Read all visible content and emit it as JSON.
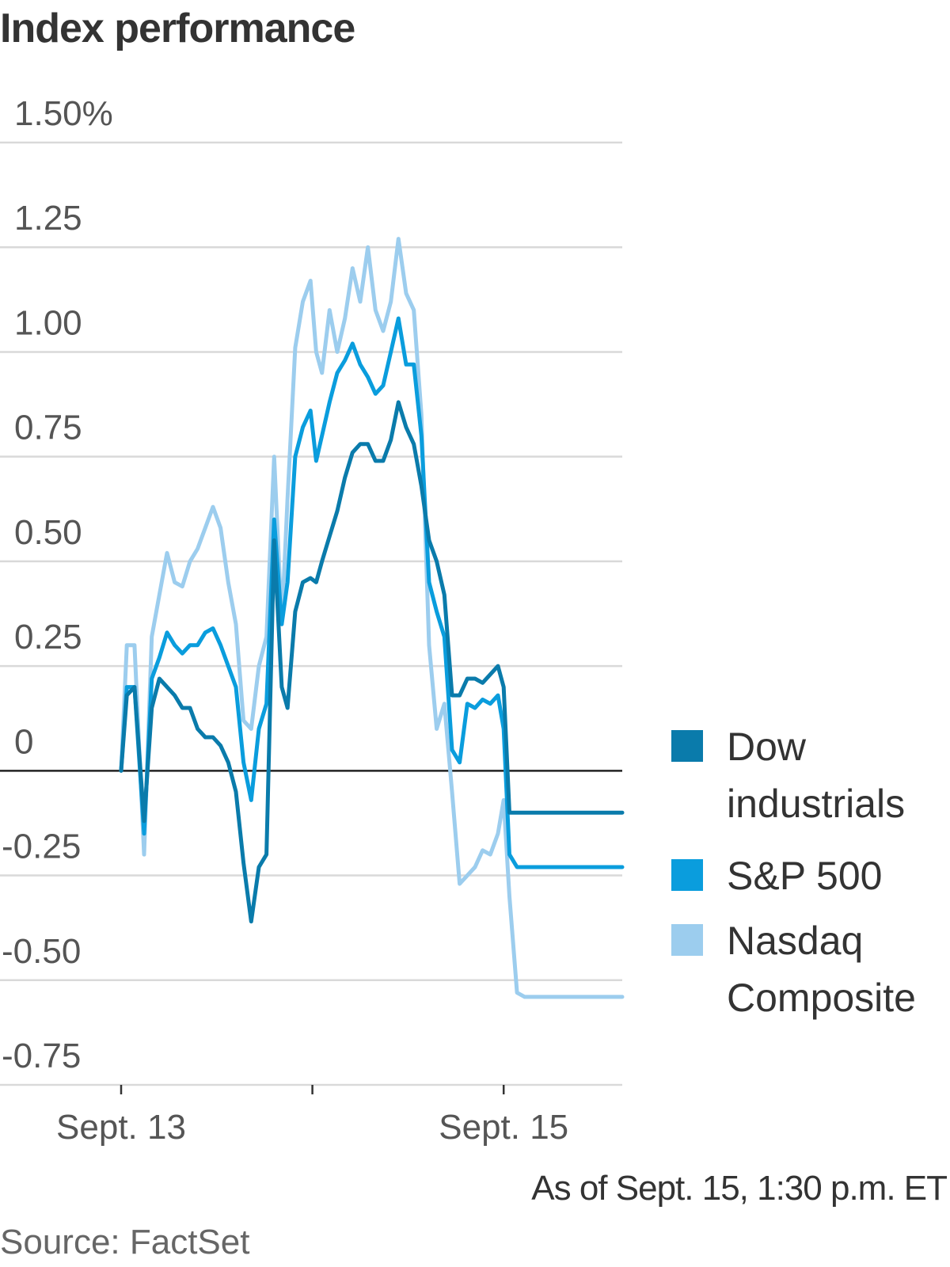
{
  "chart_data": {
    "type": "line",
    "title": "Index performance",
    "xlabel": "",
    "ylabel": "",
    "ylim": [
      -0.75,
      1.5
    ],
    "y_ticks": [
      {
        "value": 1.5,
        "label": "1.50%"
      },
      {
        "value": 1.25,
        "label": "1.25"
      },
      {
        "value": 1.0,
        "label": "1.00"
      },
      {
        "value": 0.75,
        "label": "0.75"
      },
      {
        "value": 0.5,
        "label": "0.50"
      },
      {
        "value": 0.25,
        "label": "0.25"
      },
      {
        "value": 0,
        "label": "0"
      },
      {
        "value": -0.25,
        "label": "-0.25"
      },
      {
        "value": -0.5,
        "label": "-0.50"
      },
      {
        "value": -0.75,
        "label": "-0.75"
      }
    ],
    "xlim": [
      0,
      2.62
    ],
    "x_ticks": [
      {
        "value": 0,
        "label": "Sept. 13"
      },
      {
        "value": 1,
        "label": ""
      },
      {
        "value": 2,
        "label": "Sept. 15"
      }
    ],
    "series": [
      {
        "name": "Nasdaq Composite",
        "color": "#9ccdee",
        "x": [
          0.0,
          0.03,
          0.07,
          0.12,
          0.16,
          0.2,
          0.24,
          0.28,
          0.32,
          0.36,
          0.4,
          0.44,
          0.48,
          0.52,
          0.56,
          0.6,
          0.64,
          0.68,
          0.72,
          0.76,
          0.8,
          0.84,
          0.87,
          0.91,
          0.95,
          0.99,
          1.02,
          1.05,
          1.09,
          1.13,
          1.17,
          1.21,
          1.25,
          1.29,
          1.33,
          1.37,
          1.41,
          1.45,
          1.49,
          1.53,
          1.57,
          1.61,
          1.65,
          1.69,
          1.73,
          1.77,
          1.81,
          1.85,
          1.89,
          1.93,
          1.97,
          2.0,
          2.03,
          2.07,
          2.11,
          2.15,
          2.19,
          2.23,
          2.27,
          2.31,
          2.35,
          2.39,
          2.43,
          2.47,
          2.51,
          2.55,
          2.59,
          2.62
        ],
        "values": [
          0.0,
          0.3,
          0.3,
          -0.2,
          0.32,
          0.42,
          0.52,
          0.45,
          0.44,
          0.5,
          0.53,
          0.58,
          0.63,
          0.58,
          0.45,
          0.35,
          0.12,
          0.1,
          0.25,
          0.32,
          0.75,
          0.35,
          0.65,
          1.01,
          1.12,
          1.17,
          1.0,
          0.95,
          1.1,
          1.0,
          1.08,
          1.2,
          1.12,
          1.25,
          1.1,
          1.05,
          1.12,
          1.27,
          1.14,
          1.1,
          0.85,
          0.3,
          0.1,
          0.16,
          -0.05,
          -0.27,
          -0.25,
          -0.23,
          -0.19,
          -0.2,
          -0.15,
          -0.07,
          -0.3,
          -0.53,
          -0.54,
          -0.54,
          -0.54,
          -0.54,
          -0.54,
          -0.54,
          -0.54,
          -0.54,
          -0.54,
          -0.54,
          -0.54,
          -0.54,
          -0.54,
          -0.54
        ]
      },
      {
        "name": "S&P 500",
        "color": "#0a9ddd",
        "x": [
          0.0,
          0.03,
          0.07,
          0.12,
          0.16,
          0.2,
          0.24,
          0.28,
          0.32,
          0.36,
          0.4,
          0.44,
          0.48,
          0.52,
          0.56,
          0.6,
          0.64,
          0.68,
          0.72,
          0.76,
          0.8,
          0.84,
          0.87,
          0.91,
          0.95,
          0.99,
          1.02,
          1.05,
          1.09,
          1.13,
          1.17,
          1.21,
          1.25,
          1.29,
          1.33,
          1.37,
          1.41,
          1.45,
          1.49,
          1.53,
          1.57,
          1.61,
          1.65,
          1.69,
          1.73,
          1.77,
          1.81,
          1.85,
          1.89,
          1.93,
          1.97,
          2.0,
          2.03,
          2.07,
          2.11,
          2.15,
          2.19,
          2.23,
          2.27,
          2.31,
          2.35,
          2.39,
          2.43,
          2.47,
          2.51,
          2.55,
          2.59,
          2.62
        ],
        "values": [
          0.0,
          0.2,
          0.2,
          -0.15,
          0.22,
          0.27,
          0.33,
          0.3,
          0.28,
          0.3,
          0.3,
          0.33,
          0.34,
          0.3,
          0.25,
          0.2,
          0.02,
          -0.07,
          0.1,
          0.16,
          0.6,
          0.35,
          0.45,
          0.75,
          0.82,
          0.86,
          0.74,
          0.8,
          0.88,
          0.95,
          0.98,
          1.02,
          0.97,
          0.94,
          0.9,
          0.92,
          1.0,
          1.08,
          0.97,
          0.97,
          0.8,
          0.45,
          0.38,
          0.32,
          0.05,
          0.02,
          0.16,
          0.15,
          0.17,
          0.16,
          0.18,
          0.1,
          -0.2,
          -0.23,
          -0.23,
          -0.23,
          -0.23,
          -0.23,
          -0.23,
          -0.23,
          -0.23,
          -0.23,
          -0.23,
          -0.23,
          -0.23,
          -0.23,
          -0.23,
          -0.23
        ]
      },
      {
        "name": "Dow industrials",
        "color": "#0a7bab",
        "x": [
          0.0,
          0.03,
          0.07,
          0.12,
          0.16,
          0.2,
          0.24,
          0.28,
          0.32,
          0.36,
          0.4,
          0.44,
          0.48,
          0.52,
          0.56,
          0.6,
          0.64,
          0.68,
          0.72,
          0.76,
          0.8,
          0.84,
          0.87,
          0.91,
          0.95,
          0.99,
          1.02,
          1.05,
          1.09,
          1.13,
          1.17,
          1.21,
          1.25,
          1.29,
          1.33,
          1.37,
          1.41,
          1.45,
          1.49,
          1.53,
          1.57,
          1.61,
          1.65,
          1.69,
          1.73,
          1.77,
          1.81,
          1.85,
          1.89,
          1.93,
          1.97,
          2.0,
          2.03,
          2.07,
          2.11,
          2.15,
          2.19,
          2.23,
          2.27,
          2.31,
          2.35,
          2.39,
          2.43,
          2.47,
          2.51,
          2.55,
          2.59,
          2.62
        ],
        "values": [
          0.0,
          0.18,
          0.2,
          -0.12,
          0.15,
          0.22,
          0.2,
          0.18,
          0.15,
          0.15,
          0.1,
          0.08,
          0.08,
          0.06,
          0.02,
          -0.05,
          -0.22,
          -0.36,
          -0.23,
          -0.2,
          0.55,
          0.2,
          0.15,
          0.38,
          0.45,
          0.46,
          0.45,
          0.5,
          0.56,
          0.62,
          0.7,
          0.76,
          0.78,
          0.78,
          0.74,
          0.74,
          0.79,
          0.88,
          0.82,
          0.78,
          0.68,
          0.55,
          0.5,
          0.42,
          0.18,
          0.18,
          0.22,
          0.22,
          0.21,
          0.23,
          0.25,
          0.2,
          -0.1,
          -0.1,
          -0.1,
          -0.1,
          -0.1,
          -0.1,
          -0.1,
          -0.1,
          -0.1,
          -0.1,
          -0.1,
          -0.1,
          -0.1,
          -0.1,
          -0.1,
          -0.1
        ]
      }
    ],
    "legend": {
      "placement": "right",
      "items": [
        {
          "lines": [
            "Dow",
            "industrials"
          ],
          "color": "#0a7bab"
        },
        {
          "lines": [
            "S&P 500"
          ],
          "color": "#0a9ddd"
        },
        {
          "lines": [
            "Nasdaq",
            "Composite"
          ],
          "color": "#9ccdee"
        }
      ]
    },
    "annotation": "As of Sept. 15, 1:30 p.m. ET",
    "source": "Source: FactSet"
  }
}
